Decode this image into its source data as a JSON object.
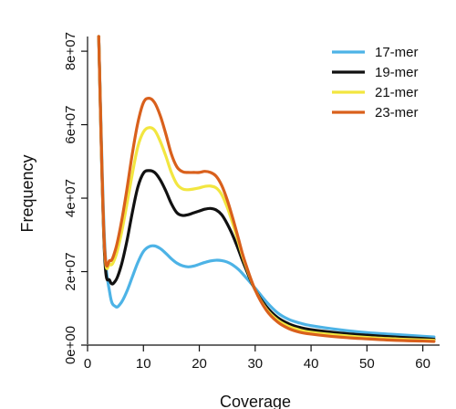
{
  "chart_data": {
    "type": "line",
    "title": "",
    "xlabel": "Coverage",
    "ylabel": "Frequency",
    "xlim": [
      0,
      63
    ],
    "ylim": [
      0,
      84000000
    ],
    "xticks": [
      0,
      10,
      20,
      30,
      40,
      50,
      60
    ],
    "xtick_labels": [
      "0",
      "10",
      "20",
      "30",
      "40",
      "50",
      "60"
    ],
    "yticks": [
      0,
      20000000,
      40000000,
      60000000,
      80000000
    ],
    "ytick_labels": [
      "0e+00",
      "2e+07",
      "4e+07",
      "6e+07",
      "8e+07"
    ],
    "grid": false,
    "legend_position": "top-right",
    "series": [
      {
        "name": "17-mer",
        "color": "#4db3e6",
        "x": [
          2,
          3,
          4,
          5,
          6,
          7,
          8,
          9,
          10,
          11,
          12,
          13,
          14,
          15,
          16,
          17,
          18,
          19,
          20,
          21,
          22,
          23,
          24,
          25,
          26,
          27,
          28,
          30,
          32,
          34,
          36,
          38,
          40,
          45,
          50,
          55,
          60,
          62
        ],
        "y": [
          84000000,
          30000000,
          14000000,
          10500000,
          11500000,
          14500000,
          18500000,
          22500000,
          25500000,
          26800000,
          27000000,
          26300000,
          25000000,
          23500000,
          22300000,
          21600000,
          21300000,
          21500000,
          22000000,
          22500000,
          22900000,
          23100000,
          23000000,
          22600000,
          21800000,
          20600000,
          19000000,
          15500000,
          11800000,
          8800000,
          7000000,
          6000000,
          5300000,
          4200000,
          3400000,
          2900000,
          2400000,
          2200000
        ]
      },
      {
        "name": "19-mer",
        "color": "#111111",
        "x": [
          2,
          3,
          4,
          5,
          6,
          7,
          8,
          9,
          10,
          11,
          12,
          13,
          14,
          15,
          16,
          17,
          18,
          19,
          20,
          21,
          22,
          23,
          24,
          25,
          26,
          27,
          28,
          30,
          32,
          34,
          36,
          38,
          40,
          45,
          50,
          55,
          60,
          62
        ],
        "y": [
          84000000,
          26000000,
          17500000,
          17500000,
          21500000,
          28000000,
          36000000,
          43000000,
          46800000,
          47500000,
          47000000,
          45000000,
          42000000,
          38500000,
          36000000,
          35300000,
          35500000,
          36000000,
          36500000,
          37000000,
          37200000,
          36800000,
          35500000,
          33000000,
          29800000,
          26000000,
          22000000,
          15000000,
          10500000,
          7500000,
          5800000,
          4800000,
          4200000,
          3300000,
          2700000,
          2200000,
          1800000,
          1600000
        ]
      },
      {
        "name": "21-mer",
        "color": "#f2e640",
        "x": [
          2,
          3,
          4,
          5,
          6,
          7,
          8,
          9,
          10,
          11,
          12,
          13,
          14,
          15,
          16,
          17,
          18,
          19,
          20,
          21,
          22,
          23,
          24,
          25,
          26,
          27,
          28,
          30,
          32,
          34,
          36,
          38,
          40,
          45,
          50,
          55,
          60,
          62
        ],
        "y": [
          84000000,
          27500000,
          22000000,
          24000000,
          30000000,
          38000000,
          46500000,
          54000000,
          58000000,
          59200000,
          58500000,
          55500000,
          51500000,
          47000000,
          43800000,
          42500000,
          42300000,
          42500000,
          42800000,
          43200000,
          43300000,
          42800000,
          41000000,
          37500000,
          33000000,
          28000000,
          23000000,
          15000000,
          9800000,
          6800000,
          5100000,
          4100000,
          3500000,
          2700000,
          2100000,
          1700000,
          1400000,
          1300000
        ]
      },
      {
        "name": "23-mer",
        "color": "#d9601c",
        "x": [
          2,
          3,
          4,
          5,
          6,
          7,
          8,
          9,
          10,
          11,
          12,
          13,
          14,
          15,
          16,
          17,
          18,
          19,
          20,
          21,
          22,
          23,
          24,
          25,
          26,
          27,
          28,
          30,
          32,
          34,
          36,
          38,
          40,
          45,
          50,
          55,
          60,
          62
        ],
        "y": [
          84000000,
          28000000,
          23000000,
          26000000,
          33000000,
          42000000,
          52000000,
          60500000,
          66000000,
          67200000,
          66000000,
          62500000,
          57500000,
          52000000,
          48500000,
          47200000,
          47000000,
          47000000,
          47000000,
          47300000,
          47000000,
          46000000,
          43500000,
          39500000,
          34500000,
          29000000,
          23500000,
          15000000,
          9500000,
          6300000,
          4500000,
          3500000,
          3000000,
          2200000,
          1700000,
          1300000,
          1100000,
          1000000
        ]
      }
    ]
  }
}
